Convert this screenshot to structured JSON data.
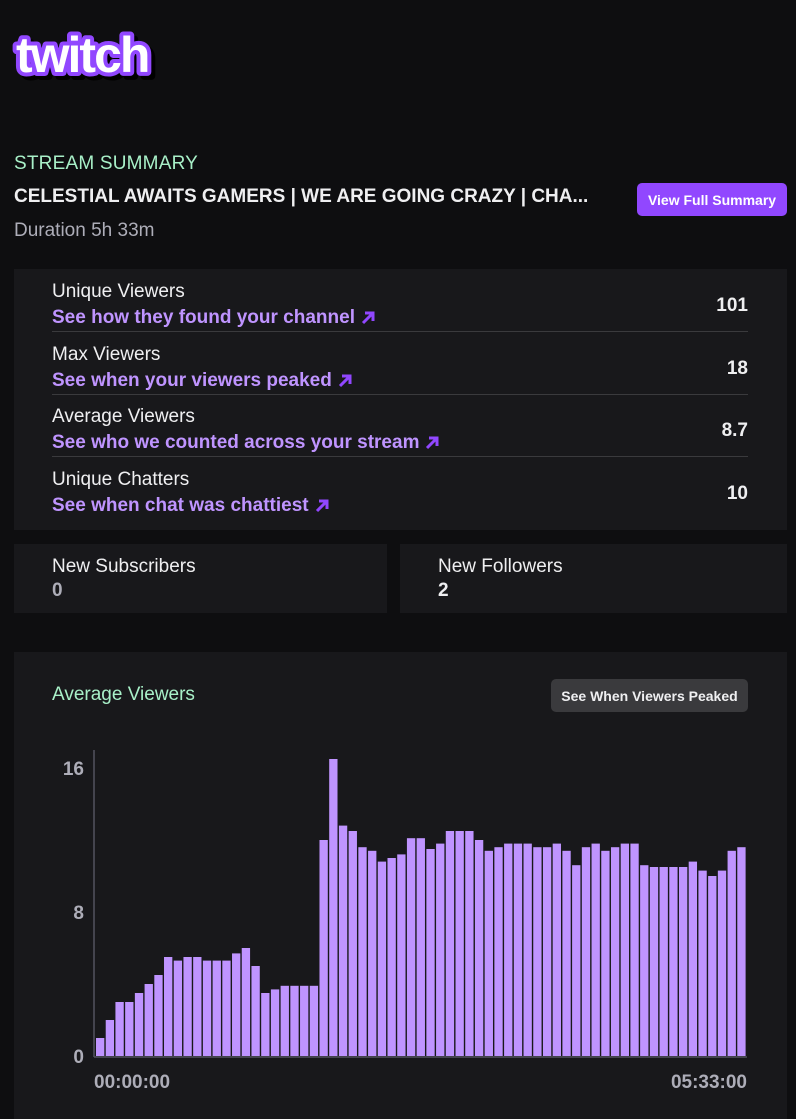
{
  "brand": {
    "logo_text": "twitch",
    "accent": "#9147ff"
  },
  "summary": {
    "kicker": "STREAM SUMMARY",
    "title": "CELESTIAL AWAITS GAMERS | WE ARE GOING CRAZY | CHA...",
    "duration": "Duration 5h 33m",
    "view_full_label": "View Full Summary"
  },
  "stats": [
    {
      "label": "Unique Viewers",
      "link": "See how they found your channel",
      "value": "101"
    },
    {
      "label": "Max Viewers",
      "link": "See when your viewers peaked",
      "value": "18"
    },
    {
      "label": "Average Viewers",
      "link": "See who we counted across your stream",
      "value": "8.7"
    },
    {
      "label": "Unique Chatters",
      "link": "See when chat was chattiest",
      "value": "10"
    }
  ],
  "cards": {
    "subscribers": {
      "label": "New Subscribers",
      "value": "0"
    },
    "followers": {
      "label": "New Followers",
      "value": "2"
    }
  },
  "chart_section": {
    "title": "Average Viewers",
    "button_label": "See When Viewers Peaked"
  },
  "chart_data": {
    "type": "bar",
    "title": "Average Viewers",
    "bar_color": "#bf94ff",
    "ylim": [
      0,
      17
    ],
    "yticks": [
      "0",
      "8",
      "16"
    ],
    "xticks": [
      "00:00:00",
      "05:33:00"
    ],
    "values": [
      1,
      2,
      3,
      3,
      3.5,
      4,
      4.5,
      5.5,
      5.3,
      5.5,
      5.5,
      5.3,
      5.3,
      5.3,
      5.7,
      6,
      5,
      3.5,
      3.7,
      3.9,
      3.9,
      3.9,
      3.9,
      12,
      16.5,
      12.8,
      12.5,
      11.6,
      11.4,
      10.8,
      11,
      11.2,
      12.1,
      12.1,
      11.5,
      11.8,
      12.5,
      12.5,
      12.5,
      12,
      11.4,
      11.6,
      11.8,
      11.8,
      11.8,
      11.6,
      11.6,
      11.8,
      11.4,
      10.6,
      11.6,
      11.8,
      11.4,
      11.6,
      11.8,
      11.8,
      10.6,
      10.5,
      10.5,
      10.5,
      10.5,
      10.8,
      10.3,
      10,
      10.3,
      11.4,
      11.6
    ]
  }
}
